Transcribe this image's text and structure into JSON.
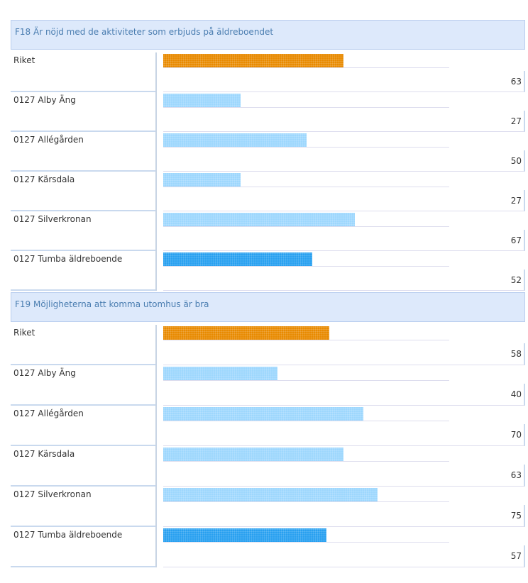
{
  "chart_data": [
    {
      "type": "bar",
      "orientation": "horizontal",
      "title": "F18 Är nöjd med de aktiviteter som erbjuds på äldreboendet",
      "categories": [
        "Riket",
        "0127 Alby Äng",
        "0127 Allégården",
        "0127 Kärsdala",
        "0127 Silverkronan",
        "0127 Tumba äldreboende"
      ],
      "values": [
        63,
        27,
        50,
        27,
        67,
        52
      ],
      "colors": [
        "#e88a00",
        "#9dd7fd",
        "#9dd7fd",
        "#9dd7fd",
        "#9dd7fd",
        "#28a0f0"
      ],
      "xlim": [
        0,
        100
      ]
    },
    {
      "type": "bar",
      "orientation": "horizontal",
      "title": "F19 Möjligheterna att komma utomhus är bra",
      "categories": [
        "Riket",
        "0127 Alby Äng",
        "0127 Allégården",
        "0127 Kärsdala",
        "0127 Silverkronan",
        "0127 Tumba äldreboende"
      ],
      "values": [
        58,
        40,
        70,
        63,
        75,
        57
      ],
      "colors": [
        "#e88a00",
        "#9dd7fd",
        "#9dd7fd",
        "#9dd7fd",
        "#9dd7fd",
        "#28a0f0"
      ],
      "xlim": [
        0,
        100
      ]
    }
  ]
}
